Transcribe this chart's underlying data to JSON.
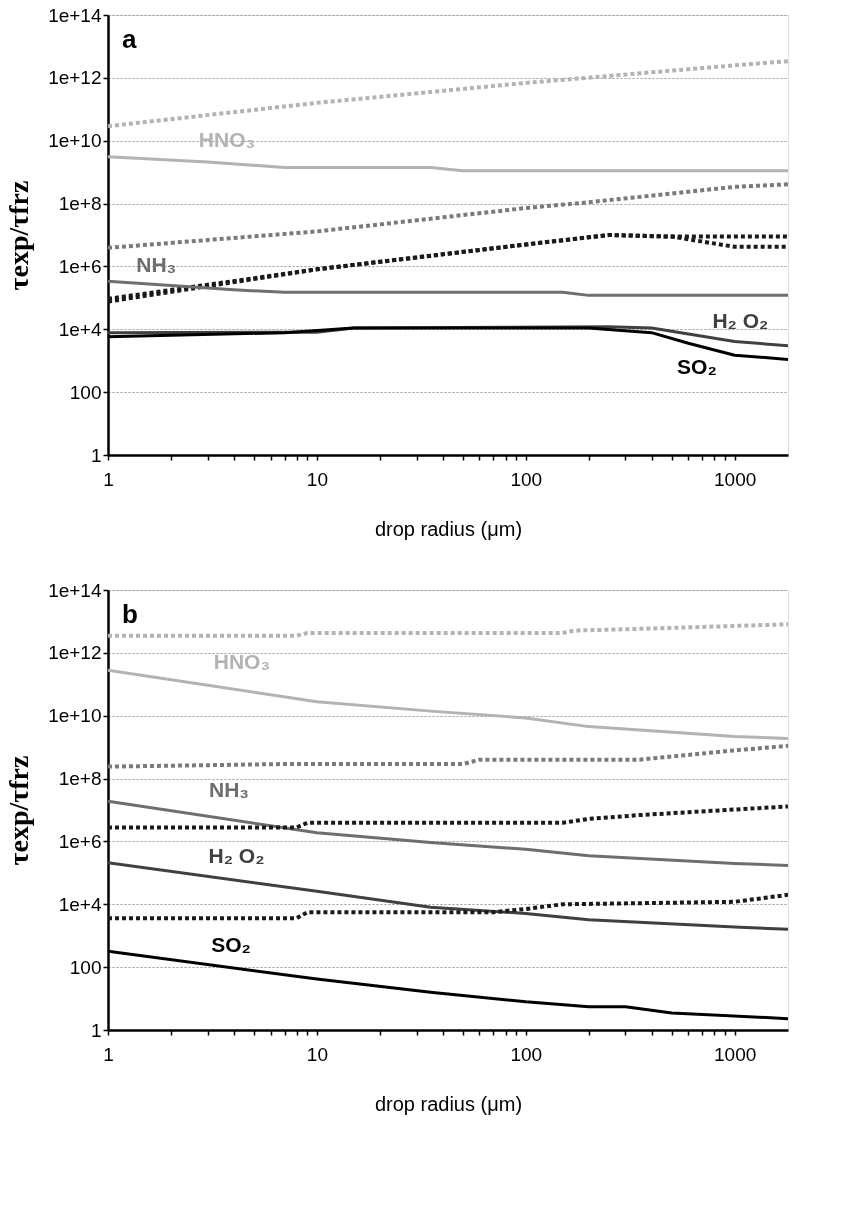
{
  "chart_data": [
    {
      "type": "line",
      "title": "a",
      "xlabel": "drop radius (μm)",
      "ylabel": "τexp/τfrz",
      "log": "xy",
      "grid": "y",
      "legend": false,
      "xlim": [
        1,
        1800
      ],
      "ylim": [
        1,
        100000000000000.0
      ],
      "xticks": [
        1,
        {
          "value": 2,
          "label": null
        },
        {
          "value": 3,
          "label": null
        },
        {
          "value": 4,
          "label": null
        },
        {
          "value": 5,
          "label": null
        },
        {
          "value": 6,
          "label": null
        },
        {
          "value": 7,
          "label": null
        },
        {
          "value": 8,
          "label": null
        },
        {
          "value": 9,
          "label": null
        },
        10,
        {
          "value": 20,
          "label": null
        },
        {
          "value": 30,
          "label": null
        },
        {
          "value": 40,
          "label": null
        },
        {
          "value": 50,
          "label": null
        },
        {
          "value": 60,
          "label": null
        },
        {
          "value": 70,
          "label": null
        },
        {
          "value": 80,
          "label": null
        },
        {
          "value": 90,
          "label": null
        },
        100,
        {
          "value": 200,
          "label": null
        },
        {
          "value": 300,
          "label": null
        },
        {
          "value": 400,
          "label": null
        },
        {
          "value": 500,
          "label": null
        },
        {
          "value": 600,
          "label": null
        },
        {
          "value": 700,
          "label": null
        },
        {
          "value": 800,
          "label": null
        },
        {
          "value": 900,
          "label": null
        },
        1000
      ],
      "yticks": [
        1,
        100,
        {
          "value": 10000,
          "label": "1e+4"
        },
        {
          "value": 1000000,
          "label": "1e+6"
        },
        {
          "value": 100000000,
          "label": "1e+8"
        },
        {
          "value": 10000000000,
          "label": "1e+10"
        },
        {
          "value": 1000000000000,
          "label": "1e+12"
        },
        {
          "value": 100000000000000,
          "label": "1e+14"
        }
      ],
      "series": [
        {
          "color": "#b3b3b3",
          "line_style": "dotted",
          "x": [
            1,
            10,
            100,
            1000,
            1800
          ],
          "values": [
            29000000000.0,
            160000000000.0,
            690000000000.0,
            2500000000000.0,
            3400000000000.0
          ]
        },
        {
          "name": "HNO₃",
          "color": "#b3b3b3",
          "line_style": "solid",
          "x": [
            1,
            3,
            7,
            35,
            50,
            1800
          ],
          "values": [
            3100000000.0,
            2100000000.0,
            1400000000.0,
            1400000000.0,
            1100000000.0,
            1100000000.0
          ]
        },
        {
          "color": "#7a7a7a",
          "line_style": "dotted",
          "x": [
            1,
            10,
            100,
            200,
            1000,
            1800
          ],
          "values": [
            3900000.0,
            13000000.0,
            72000000.0,
            110000000.0,
            340000000.0,
            410000000.0
          ]
        },
        {
          "color": "#1a1a1a",
          "line_style": "dotted",
          "x": [
            1,
            10,
            100,
            250,
            500,
            1800
          ],
          "values": [
            93000.0,
            810000.0,
            5000000.0,
            10000000.0,
            8900000.0,
            8900000.0
          ]
        },
        {
          "color": "#1a1a1a",
          "line_style": "dotted",
          "x": [
            1,
            10,
            100,
            250,
            500,
            1000,
            1800
          ],
          "values": [
            76000.0,
            810000.0,
            5000000.0,
            10000000.0,
            8900000.0,
            4200000.0,
            4200000.0
          ]
        },
        {
          "name": "NH₃",
          "color": "#6e6e6e",
          "line_style": "solid",
          "x": [
            1,
            4,
            7,
            150,
            200,
            1800
          ],
          "values": [
            340000.0,
            180000.0,
            150000.0,
            150000.0,
            120000.0,
            120000.0
          ]
        },
        {
          "name": "H₂ O₂",
          "color": "#404040",
          "line_style": "solid",
          "x": [
            1,
            10,
            15,
            250,
            400,
            1000,
            1800
          ],
          "values": [
            7800,
            8100,
            11000,
            12000,
            11000,
            4100,
            3000
          ]
        },
        {
          "name": "SO₂",
          "color": "#000000",
          "line_style": "solid",
          "x": [
            1,
            7,
            15,
            200,
            400,
            600,
            1000,
            1800
          ],
          "values": [
            5800,
            7800,
            11000,
            11000,
            7800,
            3600,
            1500,
            1100
          ]
        }
      ]
    },
    {
      "type": "line",
      "title": "b",
      "xlabel": "drop radius (μm)",
      "ylabel": "τexp/τfrz",
      "log": "xy",
      "grid": "y",
      "legend": false,
      "xlim": [
        1,
        1800
      ],
      "ylim": [
        1,
        100000000000000.0
      ],
      "xticks": [
        1,
        {
          "value": 2,
          "label": null
        },
        {
          "value": 3,
          "label": null
        },
        {
          "value": 4,
          "label": null
        },
        {
          "value": 5,
          "label": null
        },
        {
          "value": 6,
          "label": null
        },
        {
          "value": 7,
          "label": null
        },
        {
          "value": 8,
          "label": null
        },
        {
          "value": 9,
          "label": null
        },
        10,
        {
          "value": 20,
          "label": null
        },
        {
          "value": 30,
          "label": null
        },
        {
          "value": 40,
          "label": null
        },
        {
          "value": 50,
          "label": null
        },
        {
          "value": 60,
          "label": null
        },
        {
          "value": 70,
          "label": null
        },
        {
          "value": 80,
          "label": null
        },
        {
          "value": 90,
          "label": null
        },
        100,
        {
          "value": 200,
          "label": null
        },
        {
          "value": 300,
          "label": null
        },
        {
          "value": 400,
          "label": null
        },
        {
          "value": 500,
          "label": null
        },
        {
          "value": 600,
          "label": null
        },
        {
          "value": 700,
          "label": null
        },
        {
          "value": 800,
          "label": null
        },
        {
          "value": 900,
          "label": null
        },
        1000
      ],
      "yticks": [
        1,
        100,
        {
          "value": 10000,
          "label": "1e+4"
        },
        {
          "value": 1000000,
          "label": "1e+6"
        },
        {
          "value": 100000000,
          "label": "1e+8"
        },
        {
          "value": 10000000000,
          "label": "1e+10"
        },
        {
          "value": 1000000000000,
          "label": "1e+12"
        },
        {
          "value": 100000000000000,
          "label": "1e+14"
        }
      ],
      "series": [
        {
          "color": "#b3b3b3",
          "line_style": "dotted",
          "x": [
            1,
            8,
            9,
            150,
            170,
            350,
            1800
          ],
          "values": [
            3500000000000.0,
            3500000000000.0,
            4300000000000.0,
            4300000000000.0,
            5100000000000.0,
            5800000000000.0,
            8100000000000.0
          ]
        },
        {
          "name": "HNO₃",
          "color": "#b3b3b3",
          "line_style": "solid",
          "x": [
            1,
            10,
            35,
            100,
            200,
            1000,
            1800
          ],
          "values": [
            280000000000.0,
            28000000000.0,
            14000000000.0,
            8500000000.0,
            4500000000.0,
            2200000000.0,
            1900000000.0
          ]
        },
        {
          "color": "#7a7a7a",
          "line_style": "dotted",
          "x": [
            1,
            7,
            50,
            60,
            350,
            1000,
            1800
          ],
          "values": [
            240000000.0,
            290000000.0,
            290000000.0,
            400000000.0,
            400000000.0,
            790000000.0,
            1100000000.0
          ]
        },
        {
          "name": "NH₃",
          "color": "#6e6e6e",
          "line_style": "solid",
          "x": [
            1,
            10,
            35,
            100,
            200,
            1000,
            1800
          ],
          "values": [
            19000000.0,
            1900000.0,
            930000.0,
            560000.0,
            350000.0,
            200000.0,
            170000.0
          ]
        },
        {
          "color": "#1a1a1a",
          "line_style": "dotted",
          "x": [
            1,
            8,
            9,
            150,
            200,
            350,
            1800
          ],
          "values": [
            2800000.0,
            2800000.0,
            3900000.0,
            3900000.0,
            5200000.0,
            6900000.0,
            13000000.0
          ]
        },
        {
          "name": "H₂ O₂",
          "color": "#404040",
          "line_style": "solid",
          "x": [
            1,
            10,
            35,
            100,
            200,
            1000,
            1800
          ],
          "values": [
            210000.0,
            26000.0,
            8100,
            5100,
            3200,
            1900,
            1600
          ]
        },
        {
          "color": "#1a1a1a",
          "line_style": "dotted",
          "x": [
            1,
            8,
            9,
            70,
            100,
            150,
            1000,
            1800
          ],
          "values": [
            3600,
            3600,
            5600,
            5600,
            7100,
            10000,
            12000,
            20000
          ]
        },
        {
          "name": "SO₂",
          "color": "#000000",
          "line_style": "solid",
          "x": [
            1,
            10,
            35,
            100,
            200,
            300,
            500,
            1800
          ],
          "values": [
            320,
            42,
            16,
            7.9,
            5.5,
            5.5,
            3.5,
            2.3
          ]
        }
      ]
    }
  ]
}
